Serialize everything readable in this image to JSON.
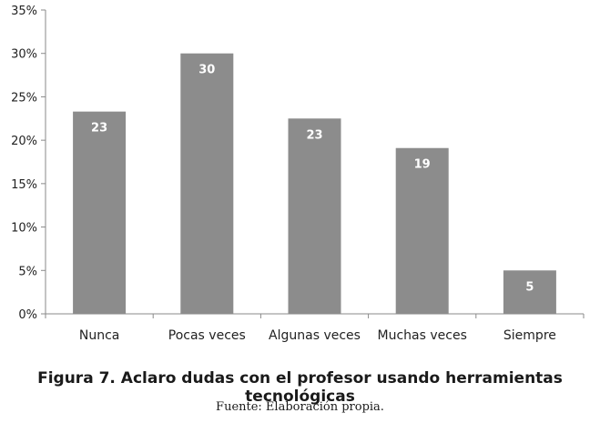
{
  "chart_data": {
    "type": "bar",
    "categories": [
      "Nunca",
      "Pocas veces",
      "Algunas veces",
      "Muchas veces",
      "Siempre"
    ],
    "values": [
      23.3,
      30,
      22.5,
      19.1,
      5
    ],
    "data_labels": [
      "23",
      "30",
      "23",
      "19",
      "5"
    ],
    "yticks": [
      "0%",
      "5%",
      "10%",
      "15%",
      "20%",
      "25%",
      "30%",
      "35%"
    ],
    "ylim": [
      0,
      35
    ],
    "ytick_step": 5,
    "grid": false,
    "legend": "none",
    "bar_color": "#8c8c8c",
    "label_color": "#ffffff"
  },
  "caption": {
    "title": "Figura 7. Aclaro dudas con el profesor usando herramientas tecnológicas",
    "source": "Fuente: Elaboración propia."
  }
}
